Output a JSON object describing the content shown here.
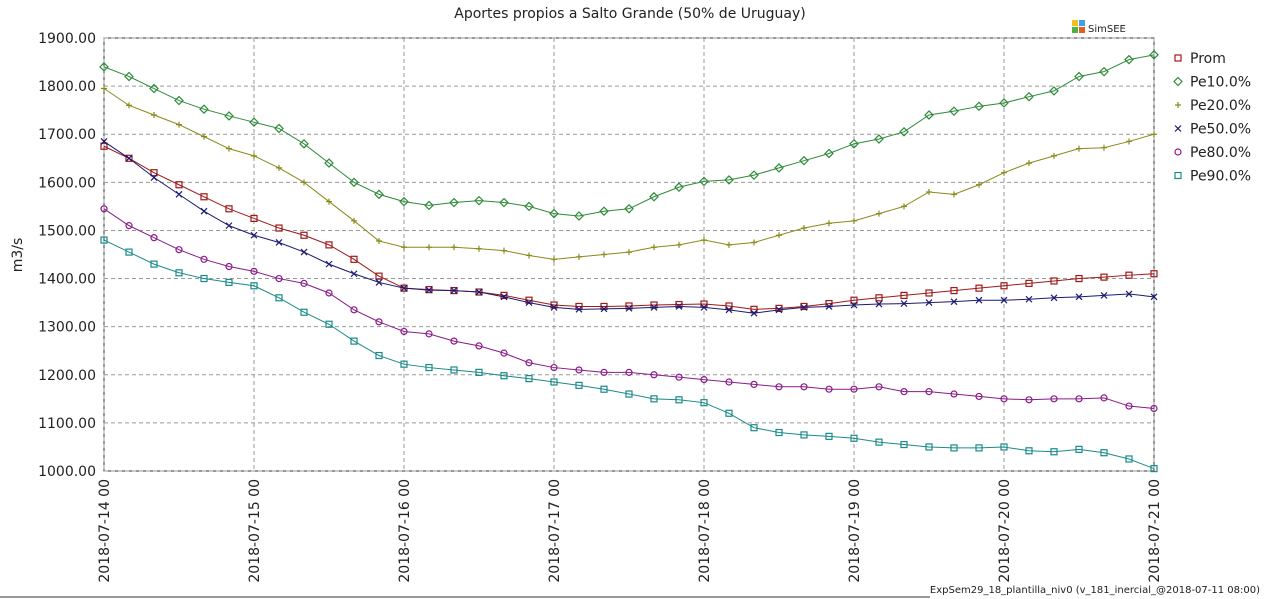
{
  "chart_data": {
    "type": "line",
    "title": "Aportes propios a Salto Grande (50% de Uruguay)",
    "y_label": "m3/s",
    "logo": "SimSEE",
    "footer": "ExpSem29_18_plantilla_niv0 (v_181_inercial_@2018-07-11 08:00)",
    "grid": true,
    "legend": "right",
    "xlim": [
      "2018-07-14 00",
      "2018-07-21 00"
    ],
    "xticks": [
      "2018-07-14 00",
      "2018-07-15 00",
      "2018-07-16 00",
      "2018-07-17 00",
      "2018-07-18 00",
      "2018-07-19 00",
      "2018-07-20 00",
      "2018-07-21 00"
    ],
    "ylim": [
      1000,
      1900
    ],
    "yticks": [
      {
        "value": 1000,
        "label": "1000.00"
      },
      {
        "value": 1100,
        "label": "1100.00"
      },
      {
        "value": 1200,
        "label": "1200.00"
      },
      {
        "value": 1300,
        "label": "1300.00"
      },
      {
        "value": 1400,
        "label": "1400.00"
      },
      {
        "value": 1500,
        "label": "1500.00"
      },
      {
        "value": 1600,
        "label": "1600.00"
      },
      {
        "value": 1700,
        "label": "1700.00"
      },
      {
        "value": 1800,
        "label": "1800.00"
      },
      {
        "value": 1900,
        "label": "1900.00"
      }
    ],
    "x": [
      "2018-07-14 00",
      "2018-07-14 04",
      "2018-07-14 08",
      "2018-07-14 12",
      "2018-07-14 16",
      "2018-07-14 20",
      "2018-07-15 00",
      "2018-07-15 04",
      "2018-07-15 08",
      "2018-07-15 12",
      "2018-07-15 16",
      "2018-07-15 20",
      "2018-07-16 00",
      "2018-07-16 04",
      "2018-07-16 08",
      "2018-07-16 12",
      "2018-07-16 16",
      "2018-07-16 20",
      "2018-07-17 00",
      "2018-07-17 04",
      "2018-07-17 08",
      "2018-07-17 12",
      "2018-07-17 16",
      "2018-07-17 20",
      "2018-07-18 00",
      "2018-07-18 04",
      "2018-07-18 08",
      "2018-07-18 12",
      "2018-07-18 16",
      "2018-07-18 20",
      "2018-07-19 00",
      "2018-07-19 04",
      "2018-07-19 08",
      "2018-07-19 12",
      "2018-07-19 16",
      "2018-07-19 20",
      "2018-07-20 00",
      "2018-07-20 04",
      "2018-07-20 08",
      "2018-07-20 12",
      "2018-07-20 16",
      "2018-07-20 20",
      "2018-07-21 00"
    ],
    "series": [
      {
        "name": "Prom",
        "color": "#a01818",
        "marker": "square",
        "values": [
          1675,
          1650,
          1620,
          1595,
          1570,
          1545,
          1525,
          1505,
          1490,
          1470,
          1440,
          1405,
          1380,
          1377,
          1375,
          1372,
          1365,
          1355,
          1345,
          1342,
          1342,
          1343,
          1345,
          1346,
          1347,
          1343,
          1336,
          1338,
          1342,
          1348,
          1355,
          1360,
          1365,
          1370,
          1375,
          1380,
          1385,
          1390,
          1395,
          1400,
          1403,
          1407,
          1410
        ]
      },
      {
        "name": "Pe10.0%",
        "color": "#2e8b3a",
        "marker": "diamond",
        "values": [
          1840,
          1820,
          1795,
          1770,
          1752,
          1738,
          1725,
          1712,
          1680,
          1640,
          1600,
          1575,
          1560,
          1552,
          1558,
          1562,
          1558,
          1550,
          1535,
          1530,
          1540,
          1545,
          1570,
          1590,
          1602,
          1605,
          1615,
          1630,
          1645,
          1660,
          1680,
          1690,
          1705,
          1740,
          1748,
          1758,
          1765,
          1778,
          1790,
          1820,
          1830,
          1855,
          1865
        ]
      },
      {
        "name": "Pe20.0%",
        "color": "#8a8a1a",
        "marker": "plus",
        "values": [
          1795,
          1760,
          1740,
          1720,
          1695,
          1670,
          1655,
          1630,
          1600,
          1560,
          1520,
          1478,
          1465,
          1465,
          1465,
          1462,
          1458,
          1448,
          1440,
          1445,
          1450,
          1455,
          1465,
          1470,
          1480,
          1470,
          1475,
          1490,
          1505,
          1515,
          1520,
          1535,
          1550,
          1580,
          1575,
          1595,
          1620,
          1640,
          1655,
          1670,
          1672,
          1685,
          1700
        ]
      },
      {
        "name": "Pe50.0%",
        "color": "#1a1a70",
        "marker": "cross",
        "values": [
          1685,
          1650,
          1610,
          1575,
          1540,
          1510,
          1490,
          1475,
          1455,
          1430,
          1410,
          1392,
          1380,
          1376,
          1375,
          1372,
          1362,
          1350,
          1340,
          1336,
          1337,
          1338,
          1340,
          1342,
          1340,
          1335,
          1328,
          1335,
          1340,
          1342,
          1345,
          1347,
          1348,
          1350,
          1352,
          1355,
          1355,
          1357,
          1360,
          1362,
          1365,
          1368,
          1362
        ]
      },
      {
        "name": "Pe80.0%",
        "color": "#8a1a8a",
        "marker": "circle",
        "values": [
          1545,
          1510,
          1485,
          1460,
          1440,
          1425,
          1415,
          1400,
          1390,
          1370,
          1335,
          1310,
          1290,
          1285,
          1270,
          1260,
          1245,
          1225,
          1215,
          1210,
          1205,
          1205,
          1200,
          1195,
          1190,
          1185,
          1180,
          1175,
          1175,
          1170,
          1170,
          1175,
          1165,
          1165,
          1160,
          1155,
          1150,
          1148,
          1150,
          1150,
          1152,
          1135,
          1130
        ]
      },
      {
        "name": "Pe90.0%",
        "color": "#1a8a8a",
        "marker": "square",
        "values": [
          1480,
          1455,
          1430,
          1412,
          1400,
          1392,
          1385,
          1360,
          1330,
          1305,
          1270,
          1240,
          1222,
          1215,
          1210,
          1205,
          1198,
          1192,
          1185,
          1178,
          1170,
          1160,
          1150,
          1148,
          1142,
          1120,
          1090,
          1080,
          1075,
          1072,
          1068,
          1060,
          1055,
          1050,
          1048,
          1048,
          1050,
          1042,
          1040,
          1045,
          1038,
          1025,
          1005
        ]
      }
    ]
  }
}
